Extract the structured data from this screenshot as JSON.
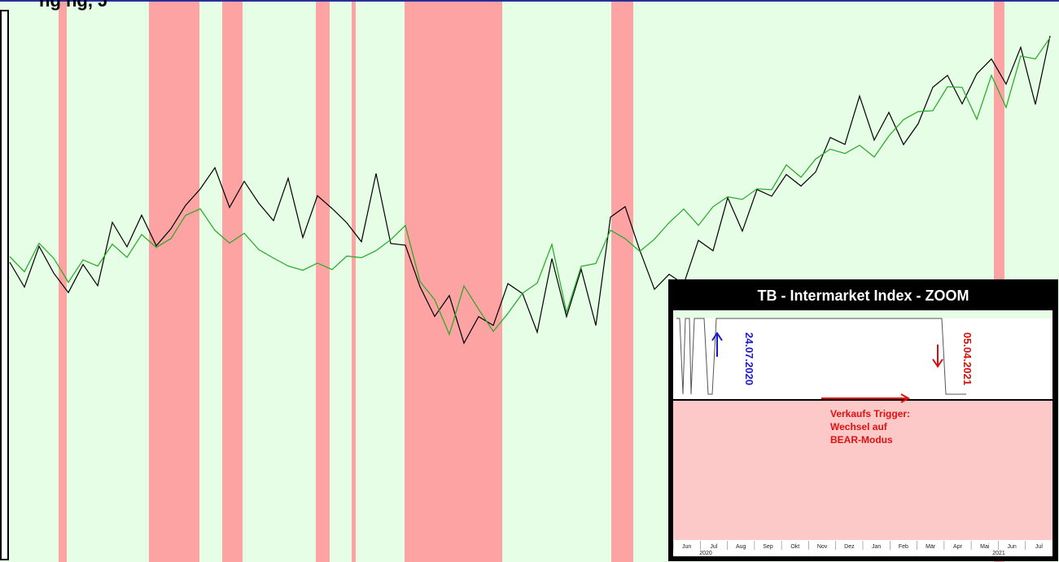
{
  "header_fragment": "ng                      ng, J",
  "chart_data": {
    "type": "line",
    "title": "",
    "main": {
      "series": [
        {
          "color": "#000000",
          "values": [
            320,
            345,
            300,
            330,
            355,
            320,
            345,
            270,
            305,
            265,
            300,
            280,
            255,
            230,
            205,
            250,
            215,
            245,
            265,
            215,
            285,
            235,
            250,
            275,
            300,
            215,
            300,
            305,
            355,
            390,
            355,
            415,
            385,
            395,
            345,
            355,
            400,
            310,
            390,
            330,
            400,
            265,
            255,
            310,
            355,
            330,
            345,
            290,
            305,
            240,
            280,
            230,
            240,
            215,
            230,
            210,
            170,
            180,
            120,
            175,
            135,
            175,
            145,
            105,
            90,
            125,
            85,
            75,
            105,
            60,
            130,
            45
          ]
        },
        {
          "color": "#22aa22",
          "values": [
            310,
            335,
            300,
            320,
            350,
            320,
            330,
            300,
            310,
            280,
            300,
            285,
            260,
            250,
            275,
            300,
            285,
            305,
            315,
            330,
            330,
            325,
            330,
            310,
            310,
            300,
            290,
            270,
            340,
            360,
            410,
            355,
            380,
            405,
            385,
            360,
            350,
            300,
            380,
            320,
            320,
            280,
            290,
            305,
            290,
            275,
            260,
            280,
            255,
            245,
            245,
            230,
            235,
            200,
            210,
            190,
            180,
            185,
            175,
            190,
            170,
            145,
            140,
            135,
            110,
            110,
            150,
            85,
            125,
            65,
            70,
            40
          ]
        }
      ],
      "red_zones": [
        [
          72,
          82
        ],
        [
          183,
          245
        ],
        [
          273,
          298
        ],
        [
          388,
          405
        ],
        [
          432,
          437
        ],
        [
          497,
          617
        ],
        [
          751,
          778
        ],
        [
          1221,
          1234
        ]
      ]
    },
    "inset": {
      "title": "TB - Intermarket Index - ZOOM",
      "months": [
        "Jun",
        "Jul",
        "Aug",
        "Sep",
        "Okt",
        "Nov",
        "Dez",
        "Jan",
        "Feb",
        "Mär",
        "Apr",
        "Mai",
        "Jun",
        "Jul"
      ],
      "years": [
        "2020",
        "2021"
      ]
    }
  },
  "annotations": {
    "date_buy": "24.07.2020",
    "date_sell": "05.04.2021",
    "trigger_lines": [
      "Verkaufs Trigger:",
      "Wechsel auf",
      "BEAR-Modus"
    ]
  },
  "colors": {
    "bull_zone": "#e6fde6",
    "bear_zone": "#fda3a3",
    "inset_bear": "#fdc8c8",
    "buy_arrow": "#1a1acc",
    "sell_arrow": "#d41010"
  }
}
